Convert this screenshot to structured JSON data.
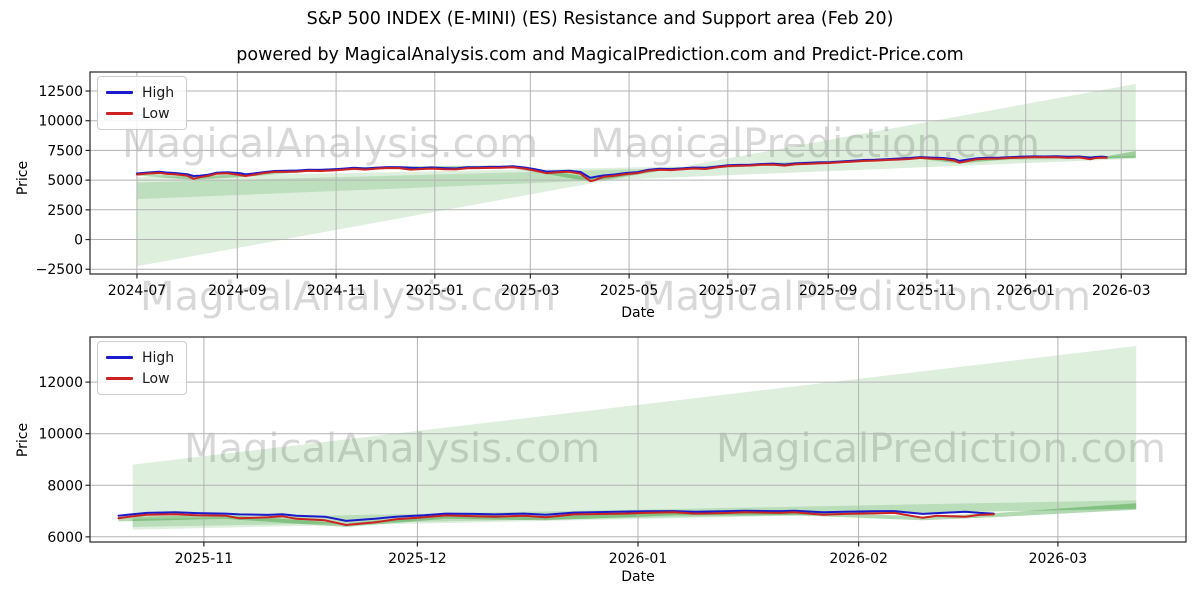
{
  "header": {
    "title": "S&P 500 INDEX (E-MINI) (ES) Resistance and Support area (Feb 20)",
    "subtitle": "powered by MagicalAnalysis.com and MagicalPrediction.com and Predict-Price.com"
  },
  "watermarks": {
    "analysis": "MagicalAnalysis.com",
    "prediction": "MagicalPrediction.com"
  },
  "colors": {
    "high_line": "#1a1acc",
    "low_line": "#cc2222",
    "band_fill": "#008000",
    "grid": "#b3b3b3",
    "spine": "#262626",
    "tick_text": "#000000"
  },
  "chart_data": [
    {
      "type": "line",
      "title": "",
      "xlabel": "Date",
      "ylabel": "Price",
      "legend_position": "upper left",
      "grid": true,
      "xlim": [
        "2024-06-02",
        "2026-04-10"
      ],
      "ylim": [
        -2900,
        14100
      ],
      "x_ticks": [
        {
          "label": "2024-07",
          "date": "2024-07-01"
        },
        {
          "label": "2024-09",
          "date": "2024-09-01"
        },
        {
          "label": "2024-11",
          "date": "2024-11-01"
        },
        {
          "label": "2025-01",
          "date": "2025-01-01"
        },
        {
          "label": "2025-03",
          "date": "2025-03-01"
        },
        {
          "label": "2025-05",
          "date": "2025-05-01"
        },
        {
          "label": "2025-07",
          "date": "2025-07-01"
        },
        {
          "label": "2025-09",
          "date": "2025-09-01"
        },
        {
          "label": "2025-11",
          "date": "2025-11-01"
        },
        {
          "label": "2026-01",
          "date": "2026-01-01"
        },
        {
          "label": "2026-03",
          "date": "2026-03-01"
        }
      ],
      "y_ticks": [
        -2500,
        0,
        2500,
        5000,
        7500,
        10000,
        12500
      ],
      "x": [
        "2024-07-01",
        "2024-07-08",
        "2024-07-15",
        "2024-07-19",
        "2024-07-25",
        "2024-08-01",
        "2024-08-05",
        "2024-08-09",
        "2024-08-14",
        "2024-08-19",
        "2024-08-26",
        "2024-09-03",
        "2024-09-06",
        "2024-09-11",
        "2024-09-17",
        "2024-09-24",
        "2024-10-01",
        "2024-10-08",
        "2024-10-15",
        "2024-10-22",
        "2024-10-29",
        "2024-11-05",
        "2024-11-12",
        "2024-11-19",
        "2024-11-26",
        "2024-12-03",
        "2024-12-10",
        "2024-12-17",
        "2024-12-23",
        "2024-12-30",
        "2025-01-07",
        "2025-01-14",
        "2025-01-21",
        "2025-01-28",
        "2025-02-04",
        "2025-02-11",
        "2025-02-18",
        "2025-02-25",
        "2025-03-04",
        "2025-03-11",
        "2025-03-18",
        "2025-03-25",
        "2025-04-01",
        "2025-04-07",
        "2025-04-10",
        "2025-04-15",
        "2025-04-22",
        "2025-04-29",
        "2025-05-06",
        "2025-05-13",
        "2025-05-20",
        "2025-05-27",
        "2025-06-03",
        "2025-06-10",
        "2025-06-17",
        "2025-06-24",
        "2025-07-01",
        "2025-07-08",
        "2025-07-15",
        "2025-07-22",
        "2025-07-29",
        "2025-08-05",
        "2025-08-12",
        "2025-08-19",
        "2025-08-26",
        "2025-09-02",
        "2025-09-09",
        "2025-09-16",
        "2025-09-23",
        "2025-09-30",
        "2025-10-07",
        "2025-10-14",
        "2025-10-21",
        "2025-10-28",
        "2025-11-04",
        "2025-11-11",
        "2025-11-18",
        "2025-11-21",
        "2025-11-25",
        "2025-12-02",
        "2025-12-09",
        "2025-12-16",
        "2025-12-23",
        "2025-12-30",
        "2026-01-06",
        "2026-01-13",
        "2026-01-20",
        "2026-01-27",
        "2026-02-03",
        "2026-02-10",
        "2026-02-13",
        "2026-02-17",
        "2026-02-20"
      ],
      "series": [
        {
          "name": "High",
          "color": "#1a1acc",
          "values": [
            5560,
            5640,
            5700,
            5640,
            5590,
            5500,
            5350,
            5380,
            5460,
            5620,
            5660,
            5580,
            5480,
            5560,
            5670,
            5770,
            5790,
            5810,
            5870,
            5860,
            5900,
            5960,
            6040,
            5980,
            6050,
            6100,
            6090,
            6040,
            6010,
            6060,
            6010,
            5990,
            6080,
            6090,
            6110,
            6120,
            6160,
            6070,
            5920,
            5720,
            5750,
            5790,
            5680,
            5200,
            5280,
            5390,
            5470,
            5600,
            5670,
            5880,
            5950,
            5930,
            5990,
            6060,
            6030,
            6140,
            6250,
            6280,
            6300,
            6360,
            6390,
            6310,
            6410,
            6450,
            6490,
            6510,
            6570,
            6630,
            6690,
            6710,
            6760,
            6810,
            6860,
            6940,
            6900,
            6860,
            6760,
            6620,
            6700,
            6840,
            6890,
            6900,
            6940,
            6980,
            7000,
            6990,
            7010,
            6960,
            6990,
            6890,
            6950,
            6980,
            6940
          ]
        },
        {
          "name": "Low",
          "color": "#cc2222",
          "values": [
            5470,
            5560,
            5610,
            5540,
            5480,
            5380,
            5110,
            5250,
            5360,
            5530,
            5580,
            5420,
            5350,
            5450,
            5590,
            5690,
            5690,
            5720,
            5790,
            5770,
            5810,
            5870,
            5960,
            5890,
            5970,
            6020,
            6010,
            5890,
            5930,
            5970,
            5920,
            5900,
            6000,
            6010,
            6030,
            6050,
            6090,
            5980,
            5800,
            5580,
            5660,
            5700,
            5540,
            4920,
            5000,
            5270,
            5370,
            5510,
            5580,
            5790,
            5870,
            5840,
            5910,
            5980,
            5940,
            6070,
            6180,
            6210,
            6230,
            6290,
            6310,
            6220,
            6330,
            6370,
            6410,
            6440,
            6500,
            6560,
            6620,
            6640,
            6690,
            6730,
            6780,
            6870,
            6810,
            6770,
            6640,
            6470,
            6580,
            6760,
            6810,
            6820,
            6870,
            6900,
            6940,
            6920,
            6940,
            6870,
            6910,
            6760,
            6860,
            6900,
            6890
          ]
        }
      ],
      "bands": [
        {
          "name": "support-resistance-cone",
          "x": [
            "2024-07-01",
            "2026-03-10"
          ],
          "upper": [
            5250,
            6900
          ],
          "lower": [
            -2250,
            13100
          ],
          "opacity": 0.13
        },
        {
          "name": "mid-support-band",
          "x": [
            "2024-07-01",
            "2026-03-10"
          ],
          "upper": [
            4800,
            7050
          ],
          "lower": [
            3400,
            6800
          ],
          "opacity": 0.14
        },
        {
          "name": "near-line-band",
          "x": [
            "2024-07-01",
            "2024-08-05",
            "2024-09-06",
            "2024-10-15",
            "2024-12-03",
            "2025-02-18",
            "2025-03-11",
            "2025-04-07",
            "2025-05-20",
            "2025-07-22",
            "2025-09-16",
            "2025-10-28",
            "2025-11-21",
            "2025-12-23",
            "2026-01-20",
            "2026-02-20",
            "2026-03-10"
          ],
          "upper": [
            5600,
            5300,
            5560,
            5930,
            6170,
            6230,
            5800,
            5250,
            6010,
            6420,
            6690,
            7000,
            6700,
            7000,
            7070,
            7010,
            7450
          ],
          "lower": [
            5380,
            5020,
            5290,
            5700,
            5930,
            6000,
            5520,
            4870,
            5790,
            6200,
            6470,
            6780,
            6400,
            6780,
            6850,
            6800,
            6900
          ],
          "opacity": 0.3
        }
      ]
    },
    {
      "type": "line",
      "title": "",
      "xlabel": "Date",
      "ylabel": "Price",
      "legend_position": "upper left",
      "grid": true,
      "xlim": [
        "2025-10-16",
        "2026-03-19"
      ],
      "ylim": [
        5800,
        13750
      ],
      "x_ticks": [
        {
          "label": "2025-11",
          "date": "2025-11-01"
        },
        {
          "label": "2025-12",
          "date": "2025-12-01"
        },
        {
          "label": "2026-01",
          "date": "2026-01-01"
        },
        {
          "label": "2026-02",
          "date": "2026-02-01"
        },
        {
          "label": "2026-03",
          "date": "2026-03-01"
        }
      ],
      "y_ticks": [
        6000,
        8000,
        10000,
        12000
      ],
      "x": [
        "2025-10-20",
        "2025-10-22",
        "2025-10-24",
        "2025-10-28",
        "2025-10-31",
        "2025-11-04",
        "2025-11-06",
        "2025-11-10",
        "2025-11-12",
        "2025-11-14",
        "2025-11-18",
        "2025-11-21",
        "2025-11-25",
        "2025-11-28",
        "2025-12-02",
        "2025-12-05",
        "2025-12-09",
        "2025-12-12",
        "2025-12-16",
        "2025-12-19",
        "2025-12-23",
        "2025-12-30",
        "2026-01-02",
        "2026-01-06",
        "2026-01-09",
        "2026-01-13",
        "2026-01-16",
        "2026-01-21",
        "2026-01-23",
        "2026-01-27",
        "2026-01-30",
        "2026-02-03",
        "2026-02-06",
        "2026-02-10",
        "2026-02-12",
        "2026-02-16",
        "2026-02-18",
        "2026-02-20"
      ],
      "series": [
        {
          "name": "High",
          "color": "#1a1acc",
          "values": [
            6820,
            6880,
            6930,
            6950,
            6920,
            6900,
            6870,
            6850,
            6880,
            6820,
            6780,
            6620,
            6700,
            6780,
            6840,
            6900,
            6890,
            6870,
            6900,
            6860,
            6940,
            6980,
            6990,
            7000,
            6970,
            6990,
            7010,
            7000,
            7010,
            6950,
            6970,
            6990,
            7000,
            6890,
            6920,
            6970,
            6930,
            6900
          ]
        },
        {
          "name": "Low",
          "color": "#cc2222",
          "values": [
            6720,
            6800,
            6860,
            6880,
            6840,
            6820,
            6720,
            6760,
            6800,
            6700,
            6640,
            6460,
            6560,
            6680,
            6760,
            6830,
            6800,
            6780,
            6820,
            6760,
            6870,
            6900,
            6930,
            6950,
            6900,
            6920,
            6950,
            6930,
            6950,
            6860,
            6890,
            6910,
            6930,
            6740,
            6820,
            6780,
            6850,
            6870
          ]
        }
      ],
      "bands": [
        {
          "name": "support-resistance-cone",
          "x": [
            "2025-10-22",
            "2026-03-12"
          ],
          "upper": [
            8800,
            13400
          ],
          "lower": [
            6280,
            7100
          ],
          "opacity": 0.13
        },
        {
          "name": "mid-support-band",
          "x": [
            "2025-10-22",
            "2026-03-12"
          ],
          "upper": [
            6680,
            7420
          ],
          "lower": [
            6380,
            7080
          ],
          "opacity": 0.16
        },
        {
          "name": "near-line-band",
          "x": [
            "2025-10-20",
            "2025-11-04",
            "2025-11-21",
            "2025-12-05",
            "2025-12-19",
            "2026-01-06",
            "2026-01-23",
            "2026-02-10",
            "2026-02-20",
            "2026-03-12"
          ],
          "upper": [
            6760,
            6860,
            6520,
            6870,
            6800,
            6980,
            6990,
            6790,
            6920,
            7300
          ],
          "lower": [
            6600,
            6700,
            6380,
            6700,
            6640,
            6830,
            6840,
            6640,
            6760,
            7050
          ],
          "opacity": 0.3
        }
      ]
    }
  ]
}
